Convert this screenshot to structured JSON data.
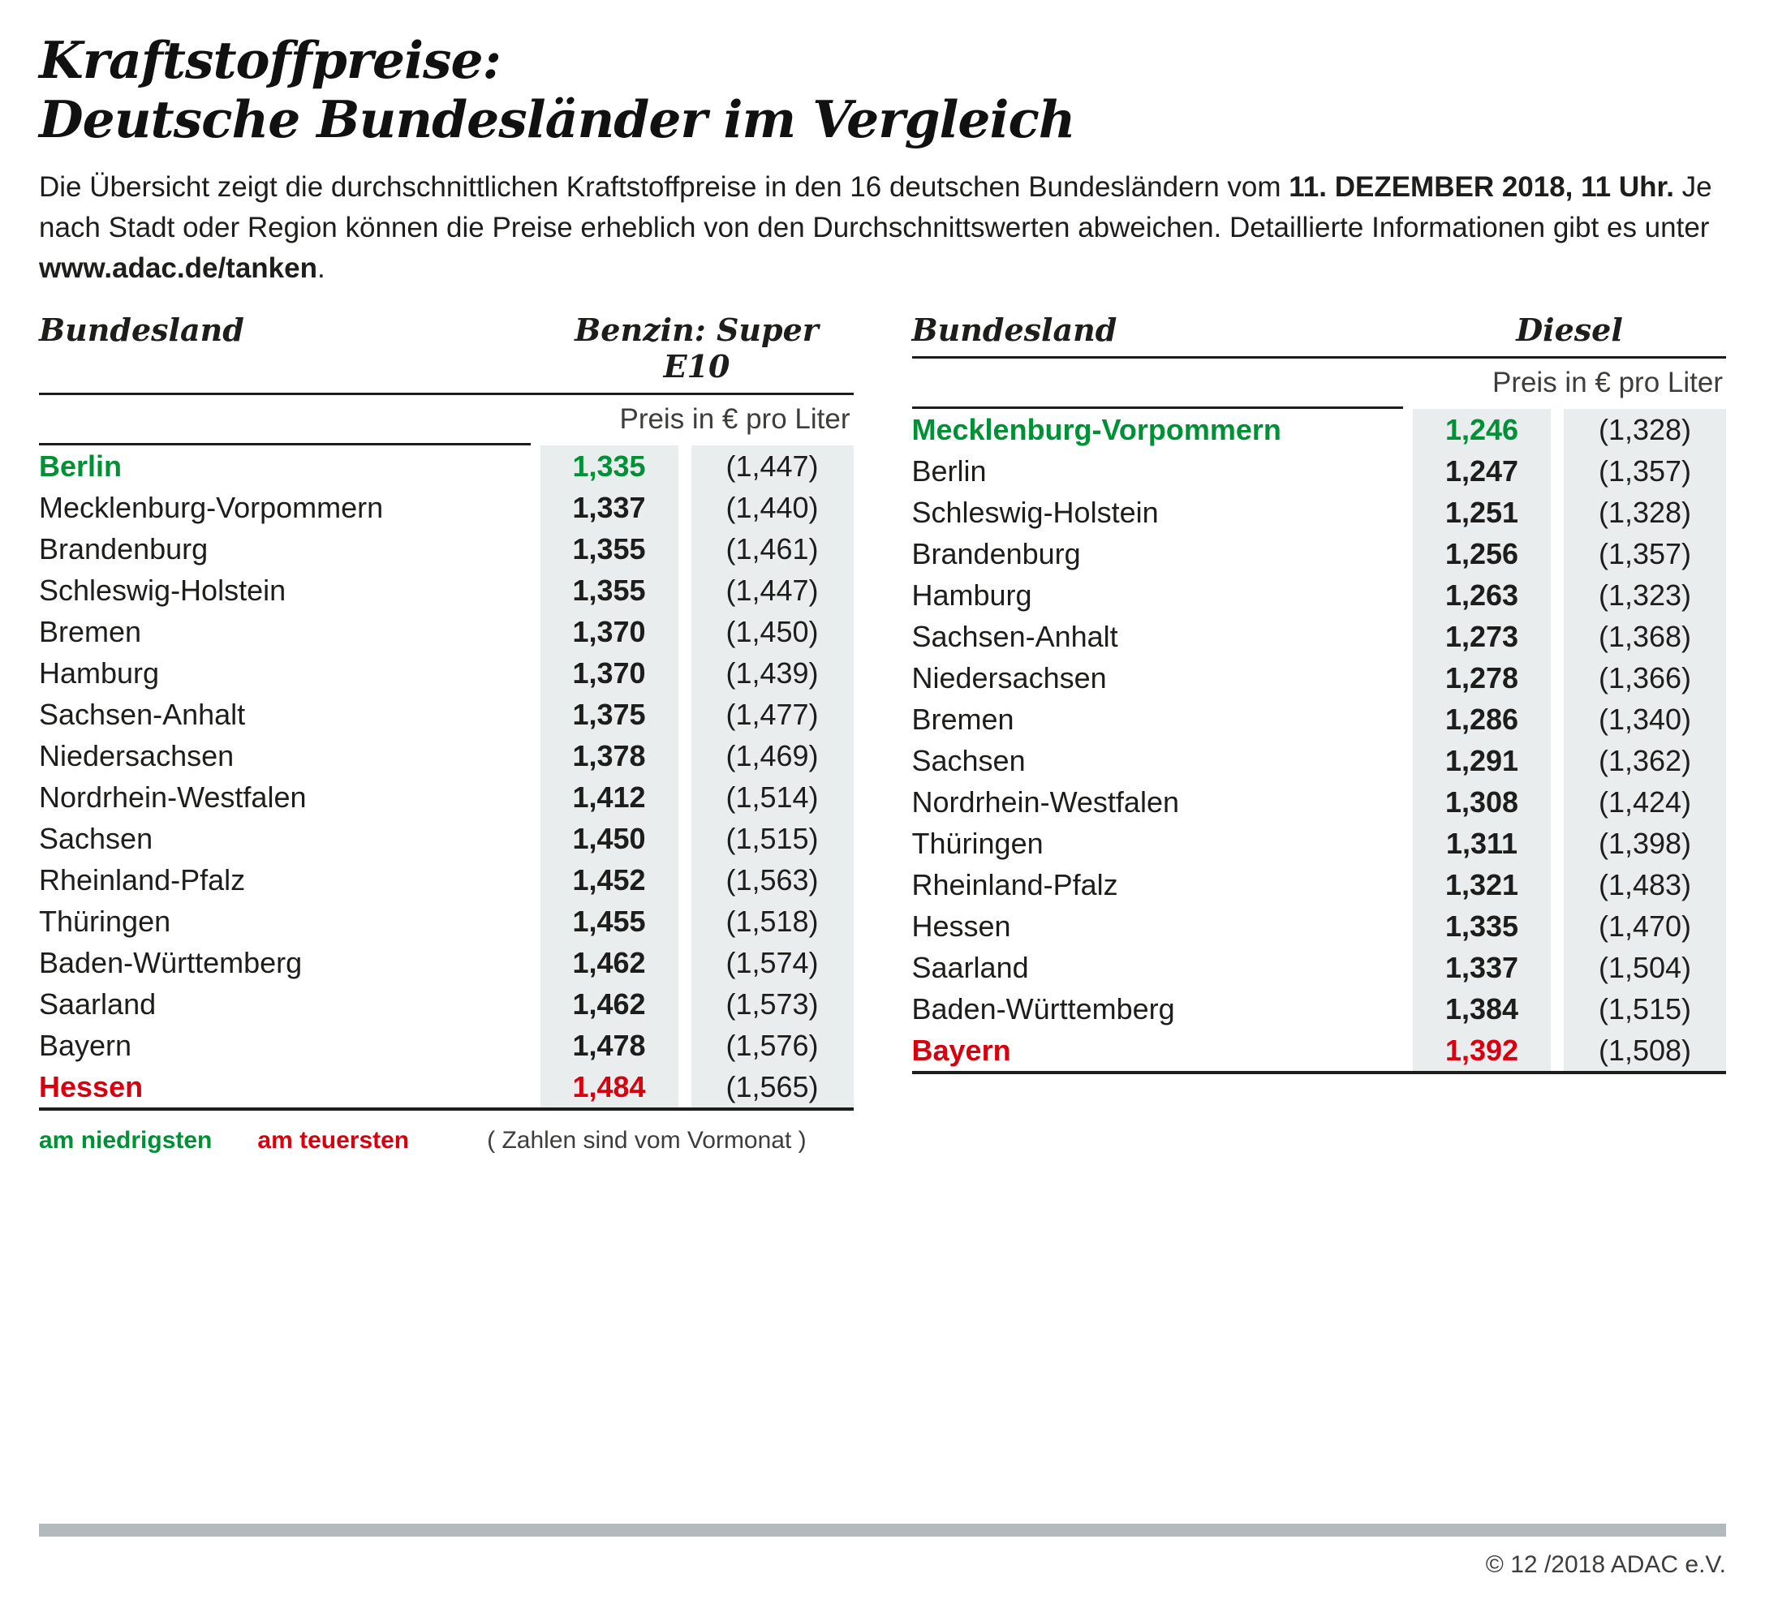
{
  "colors": {
    "green": "#009036",
    "red": "#d8000f",
    "cellbg": "#e9edee",
    "ink": "#1d1d1b",
    "muted": "#3d3d3b",
    "bar": "#b2babd"
  },
  "header": {
    "title_line1": "Kraftstoffpreise:",
    "title_line2": "Deutsche Bundesländer im Vergleich",
    "intro_text_1": "Die Übersicht zeigt die durchschnittlichen Kraftstoffpreise in den 16 deutschen Bundesländern vom ",
    "intro_bold_date": "11. DEZEMBER 2018, 11 Uhr.",
    "intro_text_2": " Je nach Stadt oder Region können die Preise erheblich von den Durchschnittswerten abweichen. Detaillierte Informationen gibt es unter ",
    "intro_url": "www.adac.de/tanken",
    "intro_text_3": "."
  },
  "legend": {
    "lowest": "am niedrigsten",
    "highest": "am teuersten",
    "note": "( Zahlen sind vom Vormonat )"
  },
  "footer": {
    "copyright": "© 12 /2018 ADAC e.V."
  },
  "chart_data": {
    "type": "table",
    "title": "Kraftstoffpreise: Deutsche Bundesländer im Vergleich",
    "unit": "€ pro Liter",
    "note": "Zahlen in Klammern sind vom Vormonat; grün = am niedrigsten, rot = am teuersten",
    "tables": [
      {
        "fuel": "Benzin:  Super E10",
        "col_state": "Bundesland",
        "col_price": "Preis in € pro Liter",
        "rows": [
          {
            "state": "Berlin",
            "price": "1,335",
            "prev": "(1,447)",
            "price_value": 1.335,
            "prev_value": 1.447,
            "highlight": "lowest"
          },
          {
            "state": "Mecklenburg-Vorpommern",
            "price": "1,337",
            "prev": "(1,440)",
            "price_value": 1.337,
            "prev_value": 1.44,
            "highlight": null
          },
          {
            "state": "Brandenburg",
            "price": "1,355",
            "prev": "(1,461)",
            "price_value": 1.355,
            "prev_value": 1.461,
            "highlight": null
          },
          {
            "state": "Schleswig-Holstein",
            "price": "1,355",
            "prev": "(1,447)",
            "price_value": 1.355,
            "prev_value": 1.447,
            "highlight": null
          },
          {
            "state": "Bremen",
            "price": "1,370",
            "prev": "(1,450)",
            "price_value": 1.37,
            "prev_value": 1.45,
            "highlight": null
          },
          {
            "state": "Hamburg",
            "price": "1,370",
            "prev": "(1,439)",
            "price_value": 1.37,
            "prev_value": 1.439,
            "highlight": null
          },
          {
            "state": "Sachsen-Anhalt",
            "price": "1,375",
            "prev": "(1,477)",
            "price_value": 1.375,
            "prev_value": 1.477,
            "highlight": null
          },
          {
            "state": "Niedersachsen",
            "price": "1,378",
            "prev": "(1,469)",
            "price_value": 1.378,
            "prev_value": 1.469,
            "highlight": null
          },
          {
            "state": "Nordrhein-Westfalen",
            "price": "1,412",
            "prev": "(1,514)",
            "price_value": 1.412,
            "prev_value": 1.514,
            "highlight": null
          },
          {
            "state": "Sachsen",
            "price": "1,450",
            "prev": "(1,515)",
            "price_value": 1.45,
            "prev_value": 1.515,
            "highlight": null
          },
          {
            "state": "Rheinland-Pfalz",
            "price": "1,452",
            "prev": "(1,563)",
            "price_value": 1.452,
            "prev_value": 1.563,
            "highlight": null
          },
          {
            "state": "Thüringen",
            "price": "1,455",
            "prev": "(1,518)",
            "price_value": 1.455,
            "prev_value": 1.518,
            "highlight": null
          },
          {
            "state": "Baden-Württemberg",
            "price": "1,462",
            "prev": "(1,574)",
            "price_value": 1.462,
            "prev_value": 1.574,
            "highlight": null
          },
          {
            "state": "Saarland",
            "price": "1,462",
            "prev": "(1,573)",
            "price_value": 1.462,
            "prev_value": 1.573,
            "highlight": null
          },
          {
            "state": "Bayern",
            "price": "1,478",
            "prev": "(1,576)",
            "price_value": 1.478,
            "prev_value": 1.576,
            "highlight": null
          },
          {
            "state": "Hessen",
            "price": "1,484",
            "prev": "(1,565)",
            "price_value": 1.484,
            "prev_value": 1.565,
            "highlight": "highest"
          }
        ]
      },
      {
        "fuel": "Diesel",
        "col_state": "Bundesland",
        "col_price": "Preis in € pro Liter",
        "rows": [
          {
            "state": "Mecklenburg-Vorpommern",
            "price": "1,246",
            "prev": "(1,328)",
            "price_value": 1.246,
            "prev_value": 1.328,
            "highlight": "lowest"
          },
          {
            "state": "Berlin",
            "price": "1,247",
            "prev": "(1,357)",
            "price_value": 1.247,
            "prev_value": 1.357,
            "highlight": null
          },
          {
            "state": "Schleswig-Holstein",
            "price": "1,251",
            "prev": "(1,328)",
            "price_value": 1.251,
            "prev_value": 1.328,
            "highlight": null
          },
          {
            "state": "Brandenburg",
            "price": "1,256",
            "prev": "(1,357)",
            "price_value": 1.256,
            "prev_value": 1.357,
            "highlight": null
          },
          {
            "state": "Hamburg",
            "price": "1,263",
            "prev": "(1,323)",
            "price_value": 1.263,
            "prev_value": 1.323,
            "highlight": null
          },
          {
            "state": "Sachsen-Anhalt",
            "price": "1,273",
            "prev": "(1,368)",
            "price_value": 1.273,
            "prev_value": 1.368,
            "highlight": null
          },
          {
            "state": "Niedersachsen",
            "price": "1,278",
            "prev": "(1,366)",
            "price_value": 1.278,
            "prev_value": 1.366,
            "highlight": null
          },
          {
            "state": "Bremen",
            "price": "1,286",
            "prev": "(1,340)",
            "price_value": 1.286,
            "prev_value": 1.34,
            "highlight": null
          },
          {
            "state": "Sachsen",
            "price": "1,291",
            "prev": "(1,362)",
            "price_value": 1.291,
            "prev_value": 1.362,
            "highlight": null
          },
          {
            "state": "Nordrhein-Westfalen",
            "price": "1,308",
            "prev": "(1,424)",
            "price_value": 1.308,
            "prev_value": 1.424,
            "highlight": null
          },
          {
            "state": "Thüringen",
            "price": "1,311",
            "prev": "(1,398)",
            "price_value": 1.311,
            "prev_value": 1.398,
            "highlight": null
          },
          {
            "state": "Rheinland-Pfalz",
            "price": "1,321",
            "prev": "(1,483)",
            "price_value": 1.321,
            "prev_value": 1.483,
            "highlight": null
          },
          {
            "state": "Hessen",
            "price": "1,335",
            "prev": "(1,470)",
            "price_value": 1.335,
            "prev_value": 1.47,
            "highlight": null
          },
          {
            "state": "Saarland",
            "price": "1,337",
            "prev": "(1,504)",
            "price_value": 1.337,
            "prev_value": 1.504,
            "highlight": null
          },
          {
            "state": "Baden-Württemberg",
            "price": "1,384",
            "prev": "(1,515)",
            "price_value": 1.384,
            "prev_value": 1.515,
            "highlight": null
          },
          {
            "state": "Bayern",
            "price": "1,392",
            "prev": "(1,508)",
            "price_value": 1.392,
            "prev_value": 1.508,
            "highlight": "highest"
          }
        ]
      }
    ]
  }
}
